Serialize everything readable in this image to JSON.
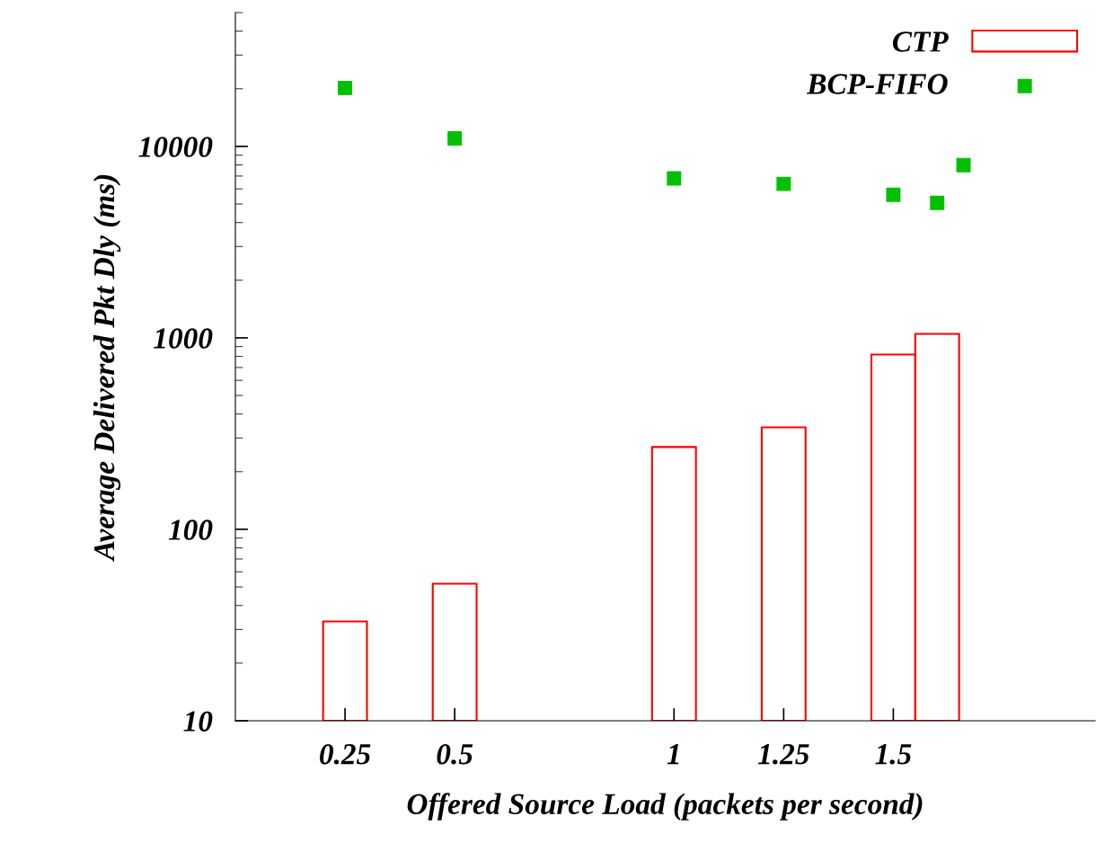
{
  "chart_data": {
    "type": "bar",
    "xlabel": "Offered Source Load (packets per second)",
    "ylabel": "Average Delivered Pkt Dly (ms)",
    "log": "y",
    "xlim": [
      0,
      1.96
    ],
    "xticks": [
      0.25,
      0.5,
      1,
      1.25,
      1.5
    ],
    "ylim": [
      10,
      50000
    ],
    "yticks": [
      10,
      100,
      1000,
      10000
    ],
    "legend": "top right",
    "grid": false,
    "series": [
      {
        "name": "CTP",
        "color": "#ff0000",
        "x": [
          0.25,
          0.5,
          1,
          1.25,
          1.5,
          1.6
        ],
        "values": [
          33,
          52,
          269,
          341,
          818,
          1050
        ]
      },
      {
        "name": "BCP-FIFO",
        "type": "scatter",
        "marker": "square",
        "color": "#00c000",
        "x": [
          0.25,
          0.5,
          1,
          1.25,
          1.5,
          1.6,
          1.66
        ],
        "values": [
          20200,
          11000,
          6800,
          6370,
          5590,
          5070,
          7980
        ]
      }
    ]
  }
}
